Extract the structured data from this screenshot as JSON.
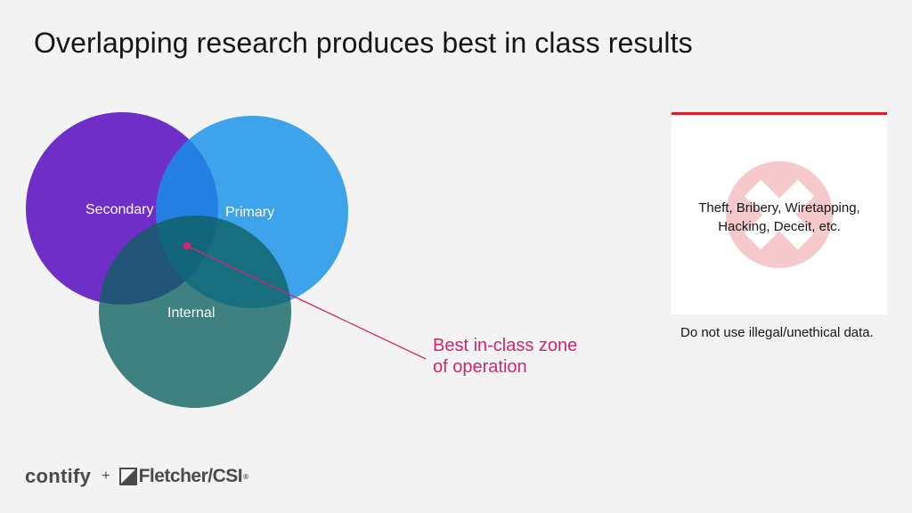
{
  "slide": {
    "title": "Overlapping research produces best in class results"
  },
  "venn": {
    "sets": [
      {
        "name": "Secondary",
        "color": "#6929c4"
      },
      {
        "name": "Primary",
        "color": "#1192e8"
      },
      {
        "name": "Internal",
        "color": "#005d5d"
      }
    ],
    "intersection_label": "Best in-class zone of operation",
    "intersection_label_lines": [
      "Best in-class zone",
      "of operation"
    ],
    "accent_color": "#d02670"
  },
  "warning_card": {
    "icon": "prohibited-x-icon",
    "text_lines": [
      "Theft, Bribery, Wiretapping,",
      "Hacking, Deceit, etc."
    ],
    "border_color": "#da1e28",
    "note": "Do not use illegal/unethical data."
  },
  "footer": {
    "brand_1": "contify",
    "separator": "+",
    "brand_2": "Fletcher/CSI",
    "brand_2_mark": "®"
  }
}
